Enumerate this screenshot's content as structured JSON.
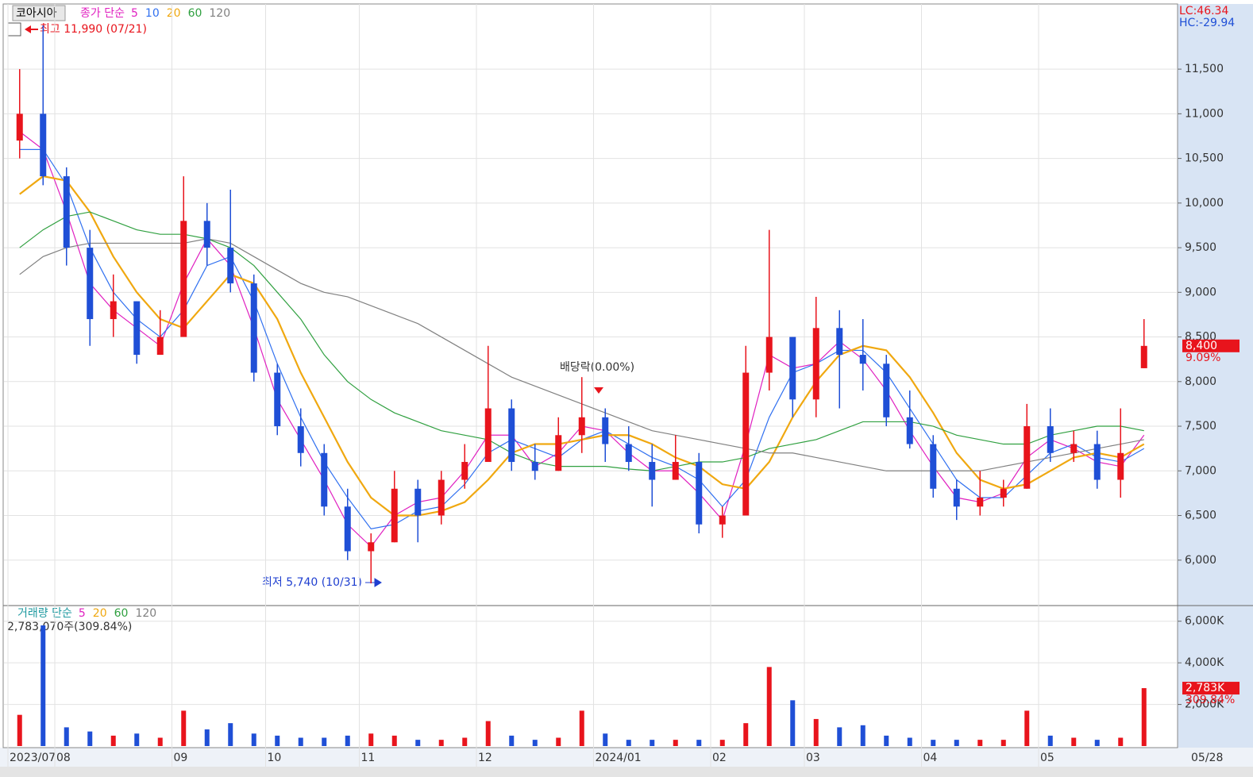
{
  "chart_data": [
    {
      "type": "candlestick",
      "title": "코아시아",
      "legend_title": "종가 단순",
      "categories": [
        "2023/07",
        null,
        "08",
        null,
        null,
        null,
        null,
        "09",
        null,
        null,
        null,
        "10",
        null,
        null,
        null,
        "11",
        null,
        null,
        null,
        null,
        "12",
        null,
        null,
        null,
        null,
        "2024/01",
        null,
        null,
        null,
        null,
        "02",
        null,
        null,
        null,
        "03",
        null,
        null,
        null,
        null,
        "04",
        null,
        null,
        null,
        null,
        "05",
        null,
        null,
        null,
        null
      ],
      "open": [
        10700,
        11000,
        10300,
        9500,
        8700,
        8900,
        8300,
        8500,
        9800,
        9500,
        9100,
        8100,
        7500,
        7200,
        6600,
        6100,
        6200,
        6800,
        6500,
        6900,
        7100,
        7700,
        7100,
        7000,
        7400,
        7600,
        7300,
        7100,
        6900,
        7100,
        6400,
        6500,
        8100,
        8500,
        7800,
        8600,
        8300,
        8200,
        7600,
        7300,
        6800,
        6600,
        6700,
        6800,
        7500,
        7200,
        7300,
        6900,
        8150
      ],
      "high": [
        11500,
        11990,
        10400,
        9700,
        9200,
        8900,
        8800,
        10300,
        10000,
        10150,
        9200,
        8200,
        7700,
        7300,
        6800,
        6300,
        7000,
        6900,
        7000,
        7300,
        8400,
        7800,
        7300,
        7600,
        8050,
        7700,
        7500,
        7300,
        7400,
        7200,
        6600,
        8400,
        9700,
        8500,
        8950,
        8800,
        8700,
        8300,
        7900,
        7400,
        6900,
        7000,
        6900,
        7750,
        7700,
        7450,
        7450,
        7700,
        8700
      ],
      "low": [
        10500,
        10200,
        9300,
        8400,
        8500,
        8200,
        8300,
        8500,
        9300,
        9000,
        8000,
        7400,
        7050,
        6500,
        6000,
        5740,
        6200,
        6200,
        6400,
        6800,
        7100,
        7000,
        6900,
        7000,
        7200,
        7100,
        7000,
        6600,
        6900,
        6300,
        6250,
        6500,
        7900,
        7600,
        7600,
        7700,
        7900,
        7500,
        7250,
        6700,
        6450,
        6500,
        6600,
        6800,
        7100,
        7100,
        6800,
        6700,
        8150
      ],
      "close": [
        11000,
        10300,
        9500,
        8700,
        8900,
        8300,
        8500,
        9800,
        9500,
        9100,
        8100,
        7500,
        7200,
        6600,
        6100,
        6200,
        6800,
        6500,
        6900,
        7100,
        7700,
        7100,
        7000,
        7400,
        7600,
        7300,
        7100,
        6900,
        7100,
        6400,
        6500,
        8100,
        8500,
        7800,
        8600,
        8300,
        8200,
        7600,
        7300,
        6800,
        6600,
        6700,
        6800,
        7500,
        7200,
        7300,
        6900,
        7200,
        8400
      ],
      "up_color": "#e8141c",
      "down_color": "#1f4fd6",
      "series": [
        {
          "name": "5",
          "color": "#e020c0",
          "values": [
            10800,
            10600,
            9900,
            9100,
            8800,
            8600,
            8400,
            9100,
            9600,
            9300,
            8600,
            7800,
            7350,
            6900,
            6400,
            6150,
            6500,
            6650,
            6700,
            7000,
            7400,
            7400,
            7050,
            7200,
            7500,
            7450,
            7200,
            7000,
            7000,
            6750,
            6450,
            7300,
            8300,
            8150,
            8200,
            8450,
            8250,
            7900,
            7450,
            7050,
            6700,
            6650,
            6750,
            7150,
            7350,
            7250,
            7100,
            7050,
            7400
          ]
        },
        {
          "name": "10",
          "color": "#3070f0",
          "values": [
            10600,
            10600,
            10200,
            9500,
            9000,
            8700,
            8500,
            8800,
            9300,
            9400,
            8900,
            8200,
            7600,
            7100,
            6700,
            6350,
            6400,
            6550,
            6600,
            6850,
            7200,
            7350,
            7250,
            7150,
            7350,
            7450,
            7300,
            7150,
            7050,
            6900,
            6600,
            6900,
            7600,
            8100,
            8200,
            8350,
            8350,
            8100,
            7700,
            7300,
            6900,
            6700,
            6700,
            6950,
            7200,
            7300,
            7150,
            7100,
            7250
          ]
        },
        {
          "name": "20",
          "color": "#f0a810",
          "values": [
            10100,
            10300,
            10250,
            9900,
            9400,
            9000,
            8700,
            8600,
            8900,
            9200,
            9100,
            8700,
            8100,
            7600,
            7100,
            6700,
            6500,
            6500,
            6550,
            6650,
            6900,
            7200,
            7300,
            7300,
            7350,
            7400,
            7400,
            7300,
            7150,
            7050,
            6850,
            6800,
            7100,
            7600,
            8000,
            8300,
            8400,
            8350,
            8050,
            7650,
            7200,
            6900,
            6800,
            6850,
            7000,
            7150,
            7200,
            7150,
            7300
          ]
        },
        {
          "name": "60",
          "color": "#30a040",
          "values": [
            9500,
            9700,
            9850,
            9900,
            9800,
            9700,
            9650,
            9650,
            9600,
            9500,
            9300,
            9000,
            8700,
            8300,
            8000,
            7800,
            7650,
            7550,
            7450,
            7400,
            7350,
            7200,
            7100,
            7050,
            7050,
            7050,
            7020,
            7000,
            7050,
            7100,
            7100,
            7150,
            7250,
            7300,
            7350,
            7450,
            7550,
            7550,
            7550,
            7500,
            7400,
            7350,
            7300,
            7300,
            7400,
            7450,
            7500,
            7500,
            7450
          ]
        },
        {
          "name": "120",
          "color": "#808080",
          "values": [
            9200,
            9400,
            9500,
            9550,
            9550,
            9550,
            9550,
            9550,
            9600,
            9550,
            9400,
            9250,
            9100,
            9000,
            8950,
            8850,
            8750,
            8650,
            8500,
            8350,
            8200,
            8050,
            7950,
            7850,
            7750,
            7650,
            7550,
            7450,
            7400,
            7350,
            7300,
            7250,
            7200,
            7200,
            7150,
            7100,
            7050,
            7000,
            7000,
            7000,
            7000,
            7000,
            7050,
            7100,
            7150,
            7200,
            7250,
            7300,
            7350
          ]
        }
      ],
      "ylim": [
        5500,
        12230
      ],
      "yticks": [
        {
          "value": 6000,
          "label": "6,000"
        },
        {
          "value": 6500,
          "label": "6,500"
        },
        {
          "value": 7000,
          "label": "7,000"
        },
        {
          "value": 7500,
          "label": "7,500"
        },
        {
          "value": 8000,
          "label": "8,000"
        },
        {
          "value": 8500,
          "label": "8,500"
        },
        {
          "value": 9000,
          "label": "9,000"
        },
        {
          "value": 9500,
          "label": "9,500"
        },
        {
          "value": 10000,
          "label": "10,000"
        },
        {
          "value": 10500,
          "label": "10,500"
        },
        {
          "value": 11000,
          "label": "11,000"
        },
        {
          "value": 11500,
          "label": "11,500"
        }
      ],
      "grid": true,
      "high_label": "최고 11,990 (07/21)",
      "low_label": "최저 5,740 (10/31)",
      "event_label": "배당락(0.00%)",
      "lc": "LC:46.34",
      "hc": "HC:-29.94",
      "last_price": {
        "value": 8400,
        "label": "8,400"
      },
      "change_label": "9.09%",
      "last_date": "05/28"
    },
    {
      "type": "bar",
      "legend_title": "거래량 단순",
      "legend": [
        {
          "name": "5",
          "color": "#e020c0"
        },
        {
          "name": "20",
          "color": "#f0a810"
        },
        {
          "name": "60",
          "color": "#30a040"
        },
        {
          "name": "120",
          "color": "#808080"
        }
      ],
      "values": [
        1500,
        5800,
        900,
        700,
        500,
        600,
        400,
        1700,
        800,
        1100,
        600,
        500,
        400,
        400,
        500,
        600,
        500,
        300,
        300,
        400,
        1200,
        500,
        300,
        400,
        1700,
        600,
        300,
        300,
        300,
        300,
        300,
        1100,
        3800,
        2200,
        1300,
        900,
        1000,
        500,
        400,
        300,
        300,
        300,
        300,
        1700,
        500,
        400,
        300,
        400,
        2783
      ],
      "summary": "2,783,070주(309.84%)",
      "ylim": [
        0,
        6600
      ],
      "yticks": [
        {
          "value": 2000,
          "label": "2,000K"
        },
        {
          "value": 4000,
          "label": "4,000K"
        },
        {
          "value": 6000,
          "label": "6,000K"
        }
      ],
      "last_value": {
        "value": 2783,
        "label": "2,783K"
      },
      "change_label": "309.84%"
    }
  ]
}
